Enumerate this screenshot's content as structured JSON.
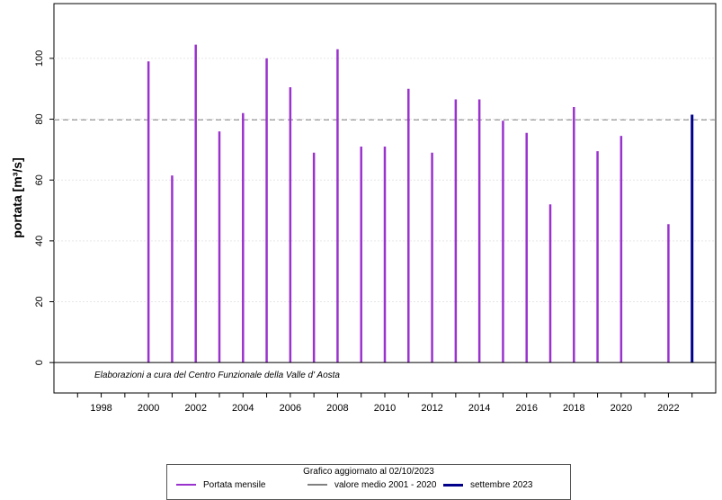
{
  "chart_data": {
    "type": "bar",
    "ylabel": "portata [m³/s]",
    "xlim": [
      1996,
      2024
    ],
    "ylim": [
      -10,
      118
    ],
    "x_ticks": [
      1998,
      2000,
      2002,
      2004,
      2006,
      2008,
      2010,
      2012,
      2014,
      2016,
      2018,
      2020,
      2022
    ],
    "y_ticks": [
      0,
      20,
      40,
      60,
      80,
      100
    ],
    "grid": true,
    "legend_placement": "bottom-center",
    "series": [
      {
        "name": "Portata mensile",
        "color": "#9a32cd",
        "x": [
          2000,
          2001,
          2002,
          2003,
          2004,
          2005,
          2006,
          2007,
          2008,
          2009,
          2010,
          2011,
          2012,
          2013,
          2014,
          2015,
          2016,
          2017,
          2018,
          2019,
          2020,
          2022
        ],
        "values": [
          99,
          61.5,
          104.5,
          76,
          82,
          100,
          90.5,
          69,
          103,
          71,
          71,
          90,
          69,
          86.5,
          86.5,
          79.5,
          75.5,
          52,
          84,
          69.5,
          74.5,
          45.5
        ]
      },
      {
        "name": "settembre 2023",
        "color": "#00008b",
        "x": [
          2023
        ],
        "values": [
          81.5
        ]
      }
    ],
    "reference_line": {
      "name": "valore medio  2001 - 2020",
      "value": 79.8,
      "color": "#808080"
    },
    "annotation": "Elaborazioni a cura del Centro Funzionale della Valle d' Aosta"
  },
  "legend": {
    "title": "Grafico aggiornato al 02/10/2023",
    "items": [
      {
        "label": "Portata mensile",
        "color": "#9a32cd"
      },
      {
        "label": "valore medio  2001 - 2020",
        "color": "#808080"
      },
      {
        "label": "settembre 2023",
        "color": "#00008b"
      }
    ]
  }
}
